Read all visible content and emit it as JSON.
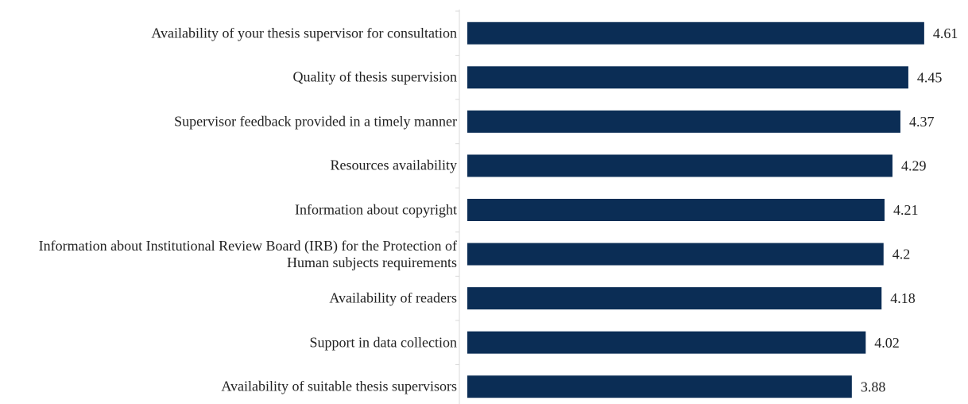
{
  "chart_data": {
    "type": "bar",
    "orientation": "horizontal",
    "categories": [
      "Availability of your thesis supervisor for consultation",
      "Quality of thesis supervision",
      "Supervisor feedback provided in a timely manner",
      "Resources availability",
      "Information about copyright",
      "Information about Institutional Review Board (IRB) for the Protection of Human subjects requirements",
      "Availability of readers",
      "Support in data collection",
      "Availability of suitable thesis supervisors"
    ],
    "values": [
      4.61,
      4.45,
      4.37,
      4.29,
      4.21,
      4.2,
      4.18,
      4.02,
      3.88
    ],
    "color": "#0b2d55",
    "xlim": [
      0,
      5
    ]
  }
}
